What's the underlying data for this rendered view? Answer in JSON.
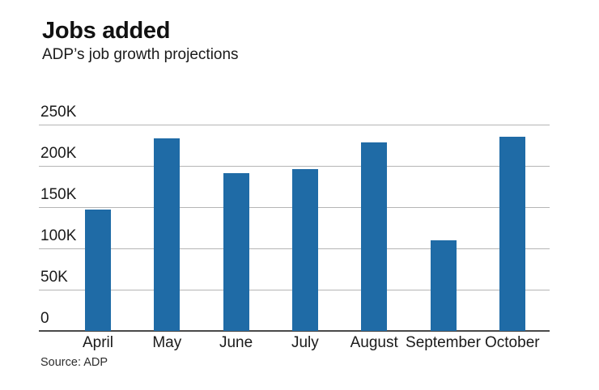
{
  "header": {
    "title": "Jobs added",
    "subtitle": "ADP’s job growth projections"
  },
  "footer": {
    "source": "Source: ADP"
  },
  "chart_data": {
    "type": "bar",
    "title": "Jobs added",
    "subtitle": "ADP’s job growth projections",
    "source": "Source: ADP",
    "categories": [
      "April",
      "May",
      "June",
      "July",
      "August",
      "September",
      "October"
    ],
    "values": [
      147,
      233,
      191,
      196,
      228,
      110,
      235
    ],
    "unit": "K",
    "series_name": "Jobs added (thousands)",
    "xlabel": "",
    "ylabel": "",
    "ylim": [
      0,
      250
    ],
    "yticks": [
      {
        "value": 0,
        "label": "0"
      },
      {
        "value": 50,
        "label": "50K"
      },
      {
        "value": 100,
        "label": "100K"
      },
      {
        "value": 150,
        "label": "150K"
      },
      {
        "value": 200,
        "label": "200K"
      },
      {
        "value": 250,
        "label": "250K"
      }
    ],
    "grid": true,
    "legend": false,
    "colors": {
      "bar": "#1f6ba6",
      "gridline": "#b5b5b5",
      "axis": "#4a4a4a",
      "text": "#1a1a1a"
    }
  }
}
